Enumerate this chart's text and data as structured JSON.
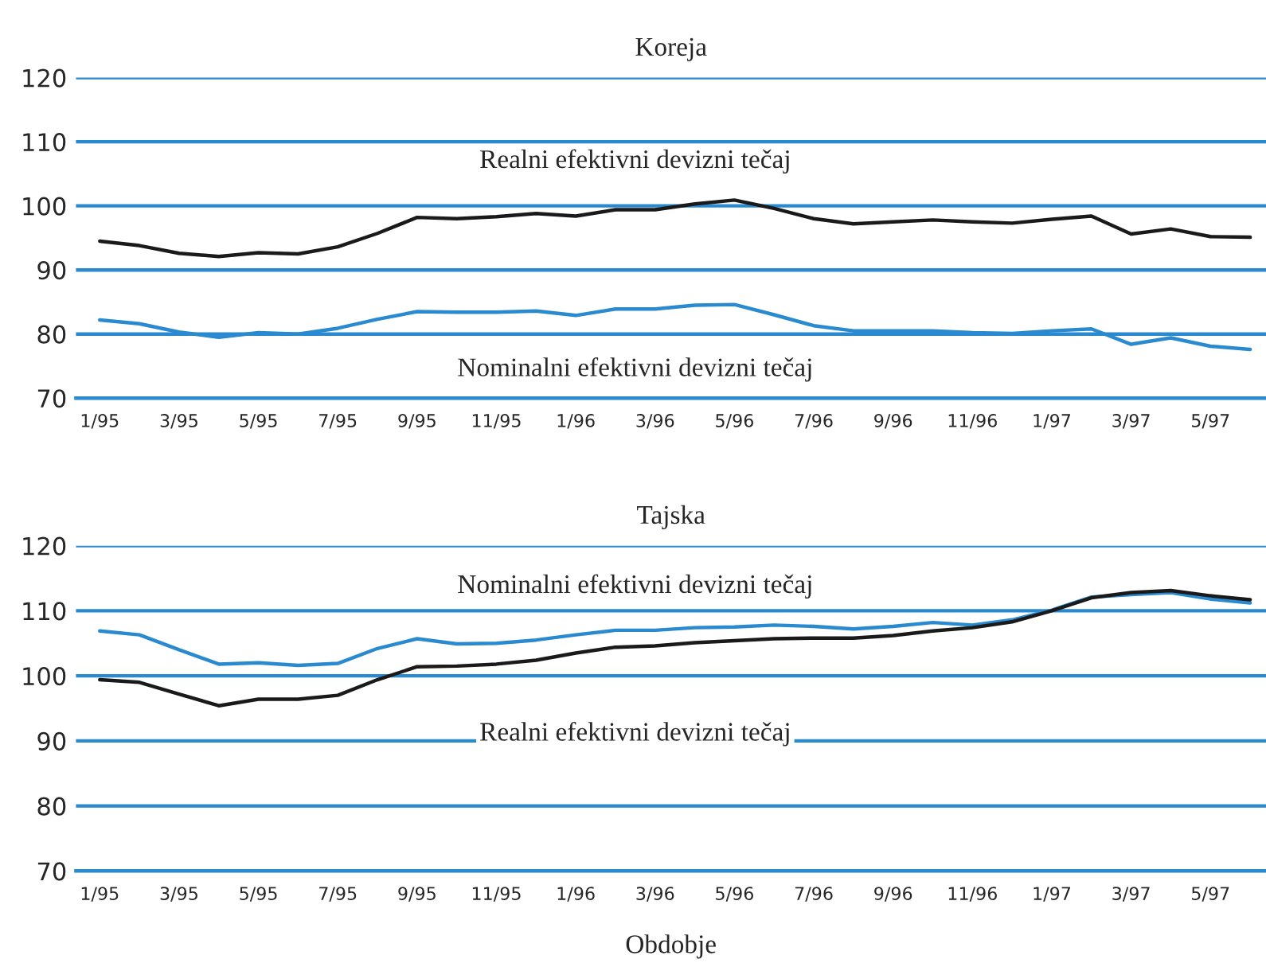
{
  "chart_data": [
    {
      "type": "line",
      "title": "Koreja",
      "categories": [
        "1/95",
        null,
        "3/95",
        null,
        "5/95",
        null,
        "7/95",
        null,
        "9/95",
        null,
        "11/95",
        null,
        "1/96",
        null,
        "3/96",
        null,
        "5/96",
        null,
        "7/96",
        null,
        "9/96",
        null,
        "11/96",
        null,
        "1/97",
        null,
        "3/97",
        null,
        "5/97",
        null
      ],
      "series": [
        {
          "name": "Realni efektivni devizni tečaj",
          "color": "#1a1a1a",
          "values": [
            94.5,
            93.8,
            92.6,
            92.1,
            92.7,
            92.5,
            93.6,
            95.7,
            98.2,
            98,
            98.3,
            98.8,
            98.4,
            99.4,
            99.4,
            100.3,
            100.9,
            99.6,
            98,
            97.2,
            97.5,
            97.8,
            97.5,
            97.3,
            97.9,
            98.4,
            95.6,
            96.4,
            95.2,
            95.1
          ]
        },
        {
          "name": "Nominalni efektivni devizni tečaj",
          "color": "#2a8ad0",
          "values": [
            82.2,
            81.6,
            80.3,
            79.5,
            80.2,
            80.0,
            80.9,
            82.3,
            83.5,
            83.4,
            83.4,
            83.6,
            82.9,
            83.9,
            83.9,
            84.5,
            84.6,
            83.0,
            81.3,
            80.5,
            80.5,
            80.5,
            80.2,
            80.1,
            80.5,
            80.8,
            78.4,
            79.4,
            78.1,
            77.6
          ]
        }
      ],
      "ylim": [
        70,
        120
      ],
      "yticks": [
        70,
        80,
        90,
        100,
        110,
        120
      ],
      "grid": "y"
    },
    {
      "type": "line",
      "title": "Tajska",
      "xlabel": "Obdobje",
      "categories": [
        "1/95",
        null,
        "3/95",
        null,
        "5/95",
        null,
        "7/95",
        null,
        "9/95",
        null,
        "11/95",
        null,
        "1/96",
        null,
        "3/96",
        null,
        "5/96",
        null,
        "7/96",
        null,
        "9/96",
        null,
        "11/96",
        null,
        "1/97",
        null,
        "3/97",
        null,
        "5/97",
        null
      ],
      "series": [
        {
          "name": "Nominalni efektivni devizni tečaj",
          "color": "#2a8ad0",
          "values": [
            106.9,
            106.3,
            104,
            101.8,
            102,
            101.6,
            101.9,
            104.2,
            105.7,
            104.9,
            105,
            105.5,
            106.3,
            107,
            107,
            107.4,
            107.5,
            107.8,
            107.6,
            107.2,
            107.6,
            108.2,
            107.8,
            108.6,
            110.1,
            112.1,
            112.5,
            112.8,
            111.8,
            111.2
          ]
        },
        {
          "name": "Realni efektivni devizni tečaj",
          "color": "#1a1a1a",
          "values": [
            99.4,
            99,
            97.2,
            95.4,
            96.4,
            96.4,
            97,
            99.4,
            101.4,
            101.5,
            101.8,
            102.4,
            103.5,
            104.4,
            104.6,
            105.1,
            105.4,
            105.7,
            105.8,
            105.8,
            106.2,
            106.9,
            107.4,
            108.3,
            110,
            112,
            112.8,
            113.1,
            112.3,
            111.7
          ]
        }
      ],
      "ylim": [
        70,
        120
      ],
      "yticks": [
        70,
        80,
        90,
        100,
        110,
        120
      ],
      "grid": "y"
    }
  ]
}
